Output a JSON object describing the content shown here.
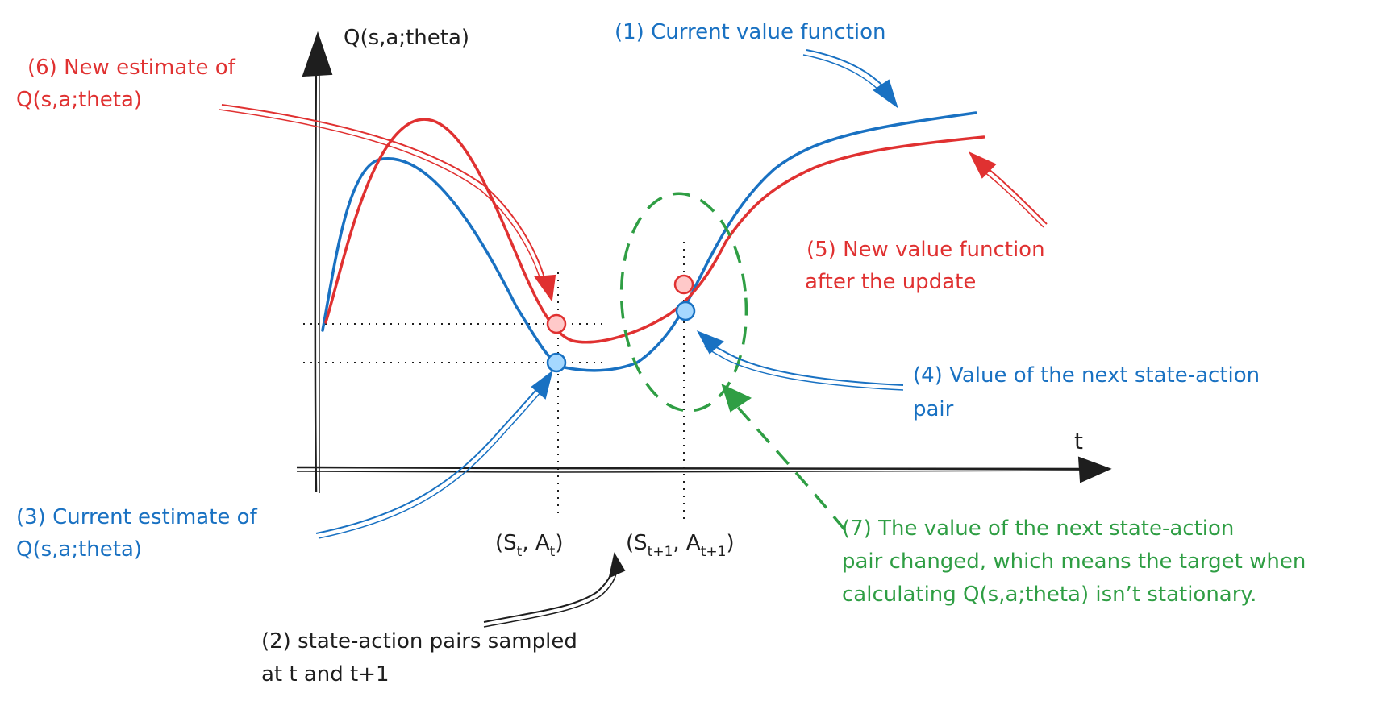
{
  "axes": {
    "y_label": "Q(s,a;theta)",
    "x_label": "t"
  },
  "colors": {
    "blue": "#1971c2",
    "red": "#e03131",
    "green": "#2f9e44",
    "black": "#1e1e1e",
    "blue_fill": "#a5d8ff",
    "red_fill": "#ffc9c9"
  },
  "labels": {
    "l1": "(1) Current value function",
    "l2_line1": "(2) state-action pairs sampled",
    "l2_line2": "at t and t+1",
    "l3_line1": "(3) Current estimate of",
    "l3_line2": "Q(s,a;theta)",
    "l4_line1": "(4) Value of the next state-action",
    "l4_line2": "pair",
    "l5_line1": "(5) New value function",
    "l5_line2": "after the update",
    "l6_line1": "(6) New estimate of",
    "l6_line2": "Q(s,a;theta)",
    "l7_line1": "(7) The value of the next state-action",
    "l7_line2": "pair changed, which means the target when",
    "l7_line3": "calculating Q(s,a;theta) isn’t stationary."
  },
  "pairs": {
    "st_S": "(S",
    "st_S_sub": "t",
    "st_A": ", A",
    "st_A_sub": "t",
    "st_close": ")",
    "st1_S": "(S",
    "st1_S_sub": "t+1",
    "st1_A": ", A",
    "st1_A_sub": "t+1",
    "st1_close": ")"
  }
}
